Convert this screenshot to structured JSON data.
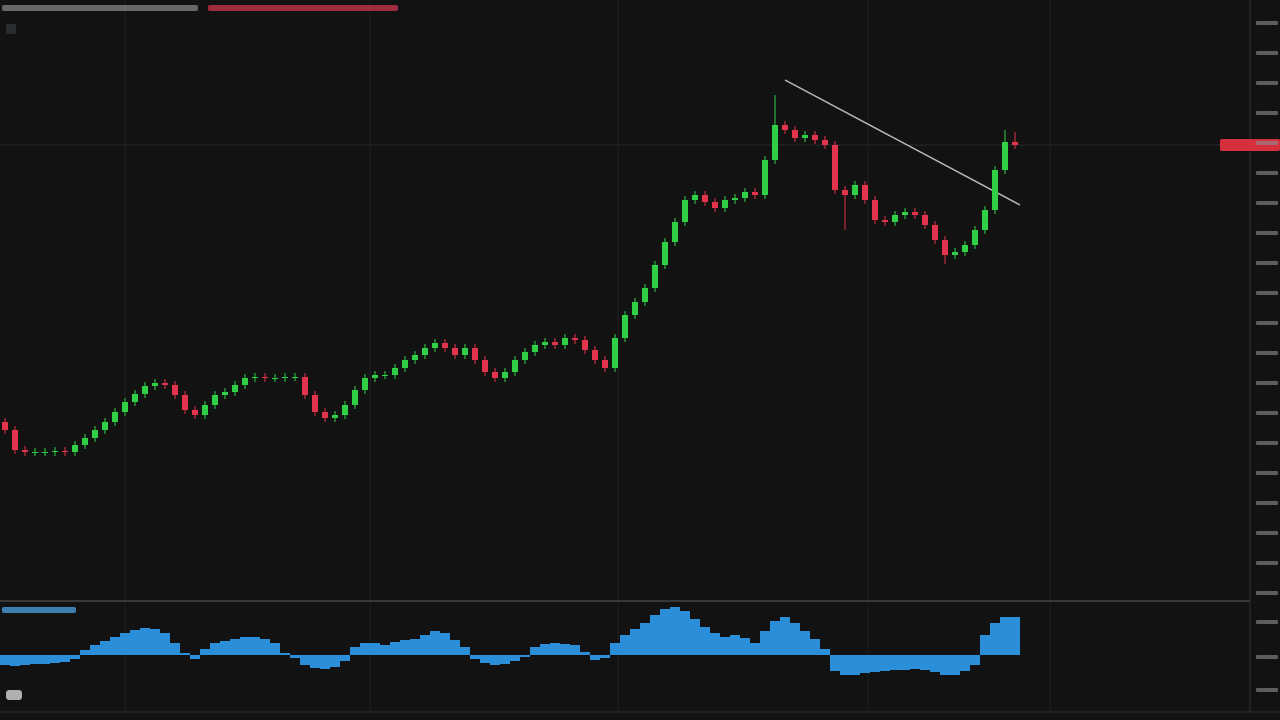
{
  "chart_data": [
    {
      "type": "candlestick",
      "up_color": "#2fd045",
      "down_color": "#e2344c",
      "ylim": [
        0,
        600
      ],
      "open": [
        178,
        170,
        150,
        148,
        148,
        148,
        149,
        148,
        155,
        162,
        170,
        178,
        188,
        198,
        206,
        214,
        217,
        215,
        205,
        190,
        185,
        195,
        205,
        208,
        215,
        222,
        223,
        222,
        222,
        223,
        223,
        205,
        188,
        182,
        185,
        195,
        210,
        222,
        225,
        225,
        232,
        240,
        245,
        252,
        257,
        252,
        245,
        252,
        240,
        228,
        222,
        228,
        240,
        248,
        255,
        258,
        255,
        262,
        260,
        250,
        240,
        232,
        262,
        285,
        298,
        312,
        335,
        358,
        378,
        400,
        405,
        398,
        392,
        400,
        402,
        408,
        405,
        440,
        475,
        470,
        462,
        465,
        460,
        455,
        410,
        405,
        415,
        400,
        380,
        378,
        385,
        388,
        385,
        375,
        360,
        345,
        348,
        355,
        370,
        390,
        430,
        458
      ],
      "high": [
        182,
        174,
        154,
        152,
        152,
        153,
        153,
        159,
        166,
        174,
        182,
        192,
        202,
        210,
        218,
        221,
        221,
        219,
        209,
        194,
        199,
        209,
        212,
        219,
        226,
        227,
        227,
        226,
        227,
        227,
        227,
        209,
        192,
        189,
        199,
        214,
        226,
        229,
        229,
        236,
        244,
        249,
        256,
        261,
        261,
        256,
        256,
        256,
        244,
        232,
        232,
        244,
        252,
        259,
        262,
        262,
        266,
        266,
        264,
        254,
        244,
        266,
        289,
        302,
        316,
        339,
        362,
        382,
        404,
        409,
        409,
        402,
        404,
        406,
        412,
        412,
        444,
        505,
        479,
        474,
        469,
        469,
        464,
        459,
        414,
        419,
        419,
        404,
        384,
        389,
        392,
        392,
        389,
        379,
        364,
        352,
        359,
        374,
        394,
        434,
        470,
        468
      ],
      "low": [
        166,
        146,
        144,
        144,
        144,
        144,
        144,
        144,
        151,
        158,
        166,
        174,
        184,
        194,
        202,
        210,
        211,
        201,
        186,
        181,
        181,
        191,
        201,
        204,
        211,
        218,
        218,
        218,
        218,
        219,
        201,
        184,
        178,
        178,
        181,
        191,
        206,
        218,
        221,
        221,
        228,
        236,
        241,
        248,
        248,
        241,
        241,
        236,
        224,
        218,
        218,
        224,
        236,
        244,
        251,
        251,
        251,
        256,
        246,
        236,
        228,
        228,
        258,
        281,
        294,
        308,
        331,
        354,
        374,
        396,
        394,
        388,
        388,
        396,
        398,
        401,
        401,
        436,
        466,
        458,
        458,
        456,
        451,
        406,
        370,
        401,
        396,
        376,
        374,
        374,
        381,
        381,
        371,
        356,
        336,
        341,
        344,
        351,
        366,
        386,
        426,
        451
      ],
      "close": [
        170,
        150,
        148,
        148,
        148,
        149,
        148,
        155,
        162,
        170,
        178,
        188,
        198,
        206,
        214,
        217,
        215,
        205,
        190,
        185,
        195,
        205,
        208,
        215,
        222,
        223,
        222,
        222,
        223,
        223,
        205,
        188,
        182,
        185,
        195,
        210,
        222,
        225,
        225,
        232,
        240,
        245,
        252,
        257,
        252,
        245,
        252,
        240,
        228,
        222,
        228,
        240,
        248,
        255,
        258,
        255,
        262,
        260,
        250,
        240,
        232,
        262,
        285,
        298,
        312,
        335,
        358,
        378,
        400,
        405,
        398,
        392,
        400,
        402,
        408,
        405,
        440,
        475,
        470,
        462,
        465,
        460,
        455,
        410,
        405,
        415,
        400,
        380,
        378,
        385,
        388,
        385,
        375,
        360,
        345,
        348,
        355,
        370,
        390,
        430,
        458,
        455
      ]
    },
    {
      "type": "bar",
      "color": "#2a8fd8",
      "ylim": [
        -50,
        50
      ],
      "values": [
        -10,
        -11,
        -10,
        -9,
        -9,
        -8,
        -7,
        -4,
        5,
        10,
        14,
        18,
        22,
        25,
        27,
        26,
        22,
        12,
        2,
        -4,
        6,
        12,
        14,
        16,
        18,
        18,
        16,
        12,
        2,
        -3,
        -10,
        -13,
        -14,
        -12,
        -6,
        8,
        12,
        12,
        10,
        13,
        15,
        16,
        20,
        24,
        22,
        15,
        8,
        -4,
        -8,
        -10,
        -9,
        -6,
        -2,
        8,
        11,
        12,
        11,
        10,
        3,
        -5,
        -3,
        12,
        20,
        26,
        32,
        40,
        46,
        48,
        44,
        36,
        28,
        22,
        18,
        20,
        17,
        12,
        24,
        34,
        38,
        32,
        24,
        16,
        6,
        -16,
        -20,
        -20,
        -18,
        -17,
        -16,
        -15,
        -15,
        -14,
        -15,
        -17,
        -20,
        -20,
        -16,
        -10,
        20,
        32,
        38,
        38
      ]
    }
  ]
}
